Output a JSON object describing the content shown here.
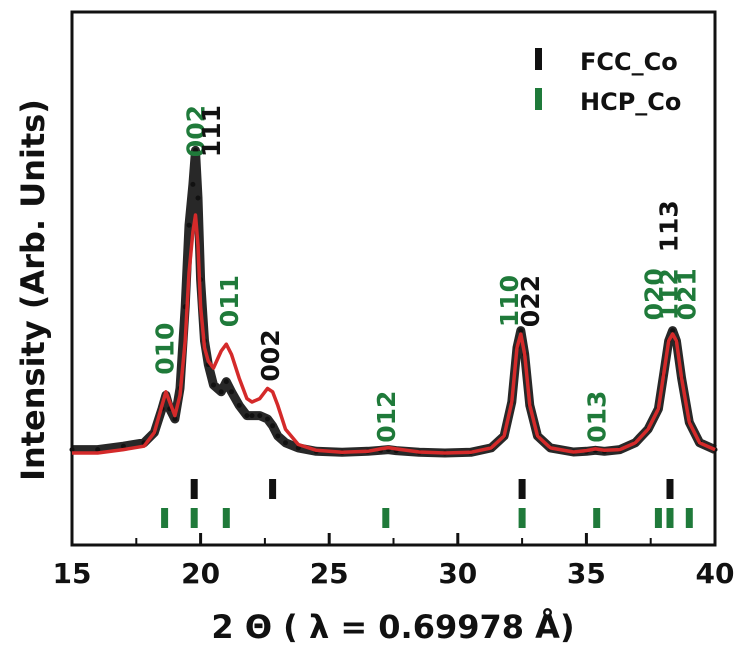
{
  "chart_data": {
    "type": "line",
    "xlabel": "2 Θ ( λ = 0.69978 Å)",
    "ylabel": "Intensity (Arb. Units)",
    "xlim": [
      15,
      40
    ],
    "ylim": [
      0,
      100
    ],
    "x_ticks": [
      15,
      20,
      25,
      30,
      35,
      40
    ],
    "x_tick_labels": [
      "15",
      "20",
      "25",
      "30",
      "35",
      "40"
    ],
    "legend": {
      "placement": "top-right",
      "entries": [
        {
          "label": "FCC_Co",
          "color": "#111111"
        },
        {
          "label": "HCP_Co",
          "color": "#1f7a3a"
        }
      ]
    },
    "series": [
      {
        "role": "observed",
        "color": "#111111",
        "x": [
          15.0,
          16.0,
          17.0,
          17.8,
          18.2,
          18.5,
          18.65,
          18.8,
          19.0,
          19.2,
          19.4,
          19.55,
          19.7,
          19.8,
          19.9,
          20.0,
          20.15,
          20.3,
          20.5,
          20.8,
          21.0,
          21.2,
          21.5,
          21.8,
          22.0,
          22.3,
          22.6,
          22.8,
          23.0,
          23.3,
          23.8,
          24.5,
          25.5,
          26.5,
          27.0,
          27.3,
          27.6,
          28.5,
          29.5,
          30.5,
          31.3,
          31.8,
          32.1,
          32.3,
          32.45,
          32.6,
          32.8,
          33.1,
          33.6,
          34.5,
          35.0,
          35.35,
          35.7,
          36.3,
          36.9,
          37.4,
          37.8,
          38.0,
          38.2,
          38.35,
          38.5,
          38.7,
          39.0,
          39.4,
          40.0
        ],
        "y": [
          6,
          6,
          7,
          8,
          11,
          18,
          22,
          18,
          15,
          24,
          48,
          72,
          84,
          94,
          80,
          56,
          38,
          31,
          25,
          23,
          26,
          23,
          19,
          16,
          16,
          16,
          15,
          13,
          10,
          8,
          6.5,
          5.5,
          5.2,
          5.5,
          5.8,
          6.0,
          5.7,
          5.2,
          5.0,
          5.2,
          6.5,
          10,
          20,
          36,
          41,
          34,
          19,
          10,
          6.5,
          5.3,
          5.5,
          5.8,
          5.5,
          6.0,
          8,
          12,
          18,
          28,
          38,
          41,
          38,
          27,
          14,
          8,
          6
        ]
      },
      {
        "role": "calculated",
        "color": "#d42a2a",
        "x": [
          15.0,
          16.0,
          17.0,
          17.8,
          18.2,
          18.5,
          18.65,
          18.8,
          19.0,
          19.2,
          19.4,
          19.55,
          19.7,
          19.8,
          19.9,
          20.0,
          20.15,
          20.3,
          20.5,
          20.8,
          21.0,
          21.2,
          21.5,
          21.8,
          22.0,
          22.3,
          22.6,
          22.8,
          23.0,
          23.3,
          23.8,
          24.5,
          25.5,
          26.5,
          27.0,
          27.3,
          27.6,
          28.5,
          29.5,
          30.5,
          31.3,
          31.8,
          32.1,
          32.3,
          32.45,
          32.6,
          32.8,
          33.1,
          33.6,
          34.5,
          35.0,
          35.35,
          35.7,
          36.3,
          36.9,
          37.4,
          37.8,
          38.0,
          38.2,
          38.35,
          38.5,
          38.7,
          39.0,
          39.4,
          40.0
        ],
        "y": [
          5,
          5,
          6,
          7,
          11,
          19,
          23,
          20,
          16,
          22,
          38,
          58,
          70,
          75,
          66,
          48,
          36,
          32,
          30,
          35,
          37,
          34,
          27,
          21,
          20,
          21,
          24,
          23,
          19,
          12,
          7.5,
          5.8,
          5.2,
          5.5,
          6.2,
          6.6,
          6.2,
          5.3,
          5.0,
          5.2,
          6.5,
          10,
          20,
          36,
          40,
          34,
          19,
          10,
          6.5,
          5.3,
          5.7,
          6.2,
          5.8,
          6.0,
          8,
          12,
          18,
          28,
          38,
          40,
          38,
          27,
          14,
          8,
          6
        ]
      }
    ],
    "peak_labels": [
      {
        "text": "002",
        "x": 19.8,
        "y": 92,
        "color": "#1f7a3a",
        "phase": "HCP_Co"
      },
      {
        "text": "111",
        "x": 20.4,
        "y": 92,
        "color": "#111111",
        "phase": "FCC_Co"
      },
      {
        "text": "010",
        "x": 18.6,
        "y": 28,
        "color": "#1f7a3a",
        "phase": "HCP_Co"
      },
      {
        "text": "011",
        "x": 21.1,
        "y": 42,
        "color": "#1f7a3a",
        "phase": "HCP_Co"
      },
      {
        "text": "002",
        "x": 22.7,
        "y": 26,
        "color": "#111111",
        "phase": "FCC_Co"
      },
      {
        "text": "012",
        "x": 27.2,
        "y": 8,
        "color": "#1f7a3a",
        "phase": "HCP_Co"
      },
      {
        "text": "110",
        "x": 32.0,
        "y": 42,
        "color": "#1f7a3a",
        "phase": "HCP_Co"
      },
      {
        "text": "022",
        "x": 32.8,
        "y": 42,
        "color": "#111111",
        "phase": "FCC_Co"
      },
      {
        "text": "013",
        "x": 35.4,
        "y": 8,
        "color": "#1f7a3a",
        "phase": "HCP_Co"
      },
      {
        "text": "020",
        "x": 37.6,
        "y": 44,
        "color": "#1f7a3a",
        "phase": "HCP_Co"
      },
      {
        "text": "112",
        "x": 38.2,
        "y": 44,
        "color": "#1f7a3a",
        "phase": "HCP_Co"
      },
      {
        "text": "021",
        "x": 38.9,
        "y": 44,
        "color": "#1f7a3a",
        "phase": "HCP_Co"
      },
      {
        "text": "113",
        "x": 38.2,
        "y": 64,
        "color": "#111111",
        "phase": "FCC_Co"
      }
    ],
    "reflection_markers": {
      "FCC_Co": [
        19.75,
        22.8,
        32.5,
        38.25
      ],
      "HCP_Co": [
        18.6,
        19.75,
        21.0,
        27.2,
        32.5,
        35.4,
        37.8,
        38.25,
        39.0
      ]
    }
  }
}
